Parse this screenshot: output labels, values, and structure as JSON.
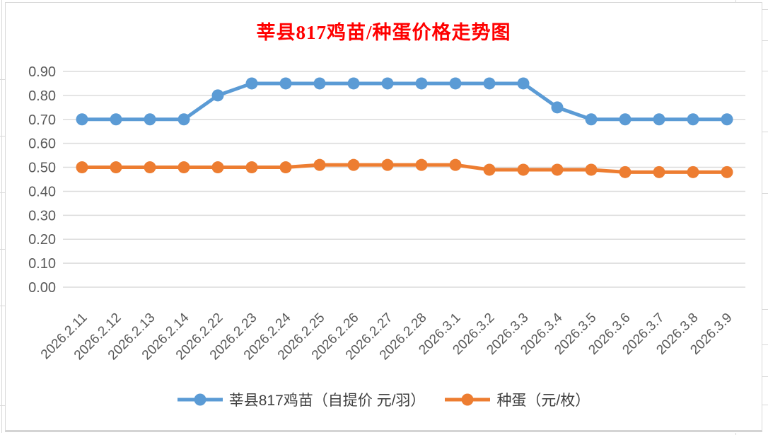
{
  "chart_data": {
    "type": "line",
    "title": "莘县817鸡苗/种蛋价格走势图",
    "categories": [
      "2026.2.11",
      "2026.2.12",
      "2026.2.13",
      "2026.2.14",
      "2026.2.22",
      "2026.2.23",
      "2026.2.24",
      "2026.2.25",
      "2026.2.26",
      "2026.2.27",
      "2026.2.28",
      "2026.3.1",
      "2026.3.2",
      "2026.3.3",
      "2026.3.4",
      "2026.3.5",
      "2026.3.6",
      "2026.3.7",
      "2026.3.8",
      "2026.3.9"
    ],
    "series": [
      {
        "name": "莘县817鸡苗（自提价 元/羽）",
        "color": "#5B9BD5",
        "values": [
          0.7,
          0.7,
          0.7,
          0.7,
          0.8,
          0.85,
          0.85,
          0.85,
          0.85,
          0.85,
          0.85,
          0.85,
          0.85,
          0.85,
          0.75,
          0.7,
          0.7,
          0.7,
          0.7,
          0.7
        ]
      },
      {
        "name": "种蛋（元/枚）",
        "color": "#ED7D31",
        "values": [
          0.5,
          0.5,
          0.5,
          0.5,
          0.5,
          0.5,
          0.5,
          0.51,
          0.51,
          0.51,
          0.51,
          0.51,
          0.49,
          0.49,
          0.49,
          0.49,
          0.48,
          0.48,
          0.48,
          0.48
        ]
      }
    ],
    "ylim": [
      0.0,
      0.9
    ],
    "ytick_step": 0.1,
    "yticks": [
      "0.00",
      "0.10",
      "0.20",
      "0.30",
      "0.40",
      "0.50",
      "0.60",
      "0.70",
      "0.80",
      "0.90"
    ],
    "grid": true,
    "legend_position": "bottom",
    "x_label_rotation_deg": -45
  },
  "style": {
    "title_color": "#FF0000",
    "axis_text_color": "#595959",
    "gridline_color": "#DCDCDC",
    "chart_border_color": "#D9D9D9",
    "legend_text_color": "#404040"
  }
}
